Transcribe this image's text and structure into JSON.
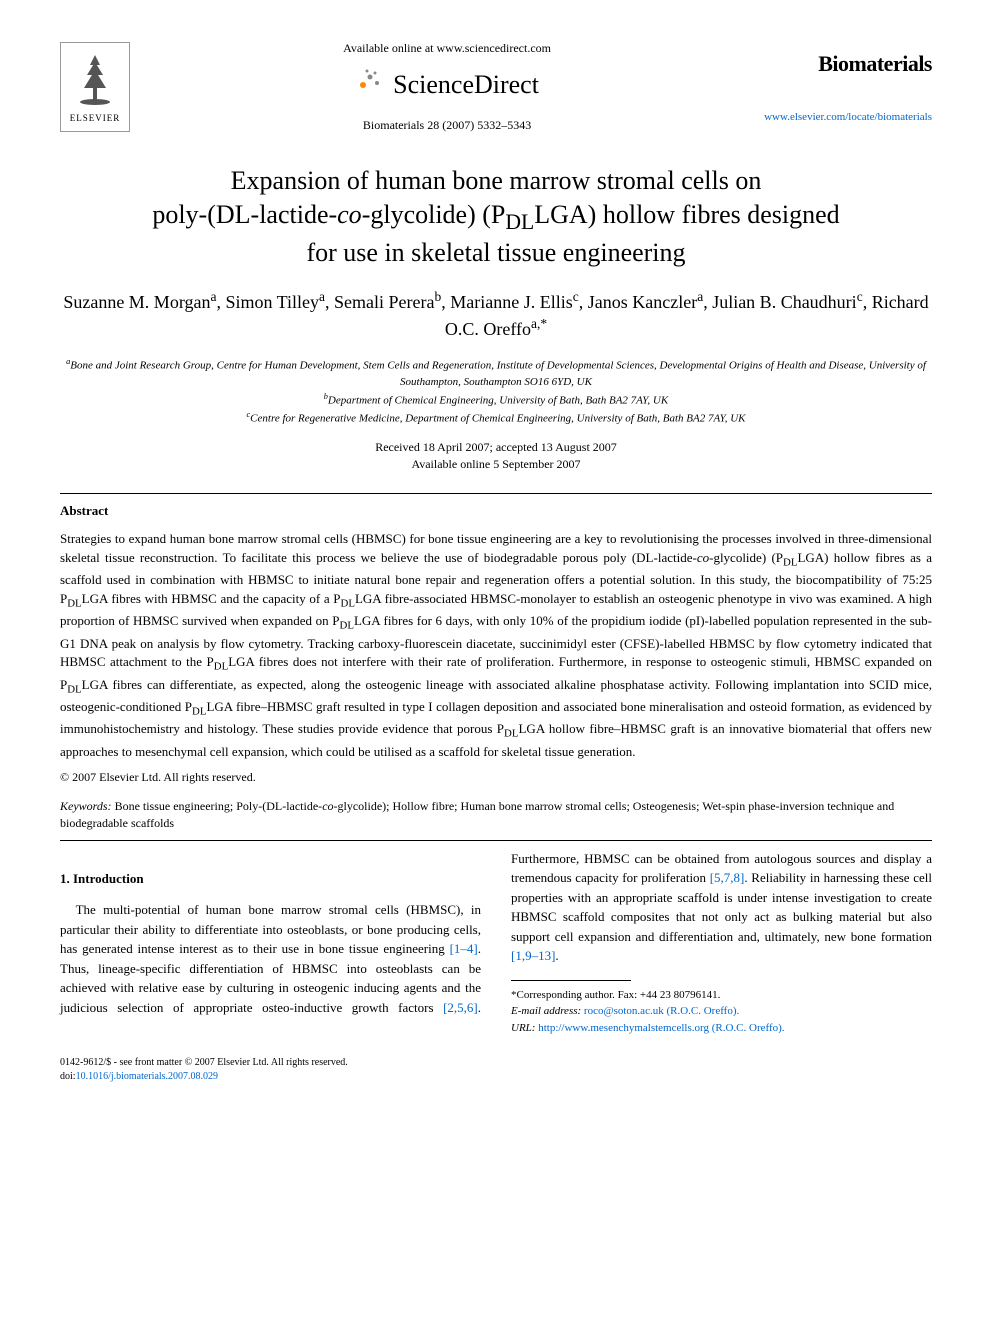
{
  "header": {
    "publisher": "ELSEVIER",
    "available_text": "Available online at www.sciencedirect.com",
    "sciencedirect_label": "ScienceDirect",
    "citation": "Biomaterials 28 (2007) 5332–5343",
    "journal_name": "Biomaterials",
    "journal_url": "www.elsevier.com/locate/biomaterials"
  },
  "title_parts": {
    "line1": "Expansion of human bone marrow stromal cells on",
    "line2_pre": "poly-(",
    "line2_dl": "DL",
    "line2_mid": "-lactide-",
    "line2_co": "co",
    "line2_post": "-glycolide) (P",
    "line2_dl2": "DL",
    "line2_end": "LGA) hollow fibres designed",
    "line3": "for use in skeletal tissue engineering"
  },
  "authors_html": "Suzanne M. Morgan<sup>a</sup>, Simon Tilley<sup>a</sup>, Semali Perera<sup>b</sup>, Marianne J. Ellis<sup>c</sup>, Janos Kanczler<sup>a</sup>, Julian B. Chaudhuri<sup>c</sup>, Richard O.C. Oreffo<sup>a,*</sup>",
  "affiliations": {
    "a": "Bone and Joint Research Group, Centre for Human Development, Stem Cells and Regeneration, Institute of Developmental Sciences, Developmental Origins of Health and Disease, University of Southampton, Southampton SO16 6YD, UK",
    "b": "Department of Chemical Engineering, University of Bath, Bath BA2 7AY, UK",
    "c": "Centre for Regenerative Medicine, Department of Chemical Engineering, University of Bath, Bath BA2 7AY, UK"
  },
  "dates": {
    "received": "Received 18 April 2007; accepted 13 August 2007",
    "online": "Available online 5 September 2007"
  },
  "abstract": {
    "heading": "Abstract",
    "text": "Strategies to expand human bone marrow stromal cells (HBMSC) for bone tissue engineering are a key to revolutionising the processes involved in three-dimensional skeletal tissue reconstruction. To facilitate this process we believe the use of biodegradable porous poly (DL-lactide-co-glycolide) (PDLLGA) hollow fibres as a scaffold used in combination with HBMSC to initiate natural bone repair and regeneration offers a potential solution. In this study, the biocompatibility of 75:25 PDLLGA fibres with HBMSC and the capacity of a PDLLGA fibre-associated HBMSC-monolayer to establish an osteogenic phenotype in vivo was examined. A high proportion of HBMSC survived when expanded on PDLLGA fibres for 6 days, with only 10% of the propidium iodide (pI)-labelled population represented in the sub-G1 DNA peak on analysis by flow cytometry. Tracking carboxy-fluorescein diacetate, succinimidyl ester (CFSE)-labelled HBMSC by flow cytometry indicated that HBMSC attachment to the PDLLGA fibres does not interfere with their rate of proliferation. Furthermore, in response to osteogenic stimuli, HBMSC expanded on PDLLGA fibres can differentiate, as expected, along the osteogenic lineage with associated alkaline phosphatase activity. Following implantation into SCID mice, osteogenic-conditioned PDLLGA fibre–HBMSC graft resulted in type I collagen deposition and associated bone mineralisation and osteoid formation, as evidenced by immunohistochemistry and histology. These studies provide evidence that porous PDLLGA hollow fibre–HBMSC graft is an innovative biomaterial that offers new approaches to mesenchymal cell expansion, which could be utilised as a scaffold for skeletal tissue generation.",
    "copyright": "© 2007 Elsevier Ltd. All rights reserved."
  },
  "keywords": {
    "label": "Keywords:",
    "text": "Bone tissue engineering; Poly-(DL-lactide-co-glycolide); Hollow fibre; Human bone marrow stromal cells; Osteogenesis; Wet-spin phase-inversion technique and biodegradable scaffolds"
  },
  "intro": {
    "heading": "1.  Introduction",
    "p1_a": "The multi-potential of human bone marrow stromal cells (HBMSC), in particular their ability to differentiate into osteoblasts, or bone producing cells, has generated intense interest as to their use in bone tissue engineering ",
    "p1_ref1": "[1–4]",
    "p1_b": ". Thus, lineage-specific differentiation of HBMSC into",
    "p2_a": "osteoblasts can be achieved with relative ease by culturing in osteogenic inducing agents and the judicious selection of appropriate osteo-inductive growth factors ",
    "p2_ref1": "[2,5,6]",
    "p2_b": ". Furthermore, HBMSC can be obtained from autologous sources and display a tremendous capacity for proliferation ",
    "p2_ref2": "[5,7,8]",
    "p2_c": ". Reliability in harnessing these cell properties with an appropriate scaffold is under intense investigation to create HBMSC scaffold composites that not only act as bulking material but also support cell expansion and differentiation and, ultimately, new bone formation ",
    "p2_ref3": "[1,9–13]",
    "p2_d": "."
  },
  "footnotes": {
    "corresponding": "*Corresponding author. Fax: +44 23 80796141.",
    "email_label": "E-mail address:",
    "email": "roco@soton.ac.uk (R.O.C. Oreffo).",
    "url_label": "URL:",
    "url": "http://www.mesenchymalstemcells.org (R.O.C. Oreffo)."
  },
  "footer": {
    "line1": "0142-9612/$ - see front matter © 2007 Elsevier Ltd. All rights reserved.",
    "line2": "doi:10.1016/j.biomaterials.2007.08.029"
  },
  "colors": {
    "link": "#0066cc",
    "text": "#000000",
    "bg": "#ffffff",
    "sd_orange": "#ff8800",
    "sd_gray": "#888888"
  }
}
